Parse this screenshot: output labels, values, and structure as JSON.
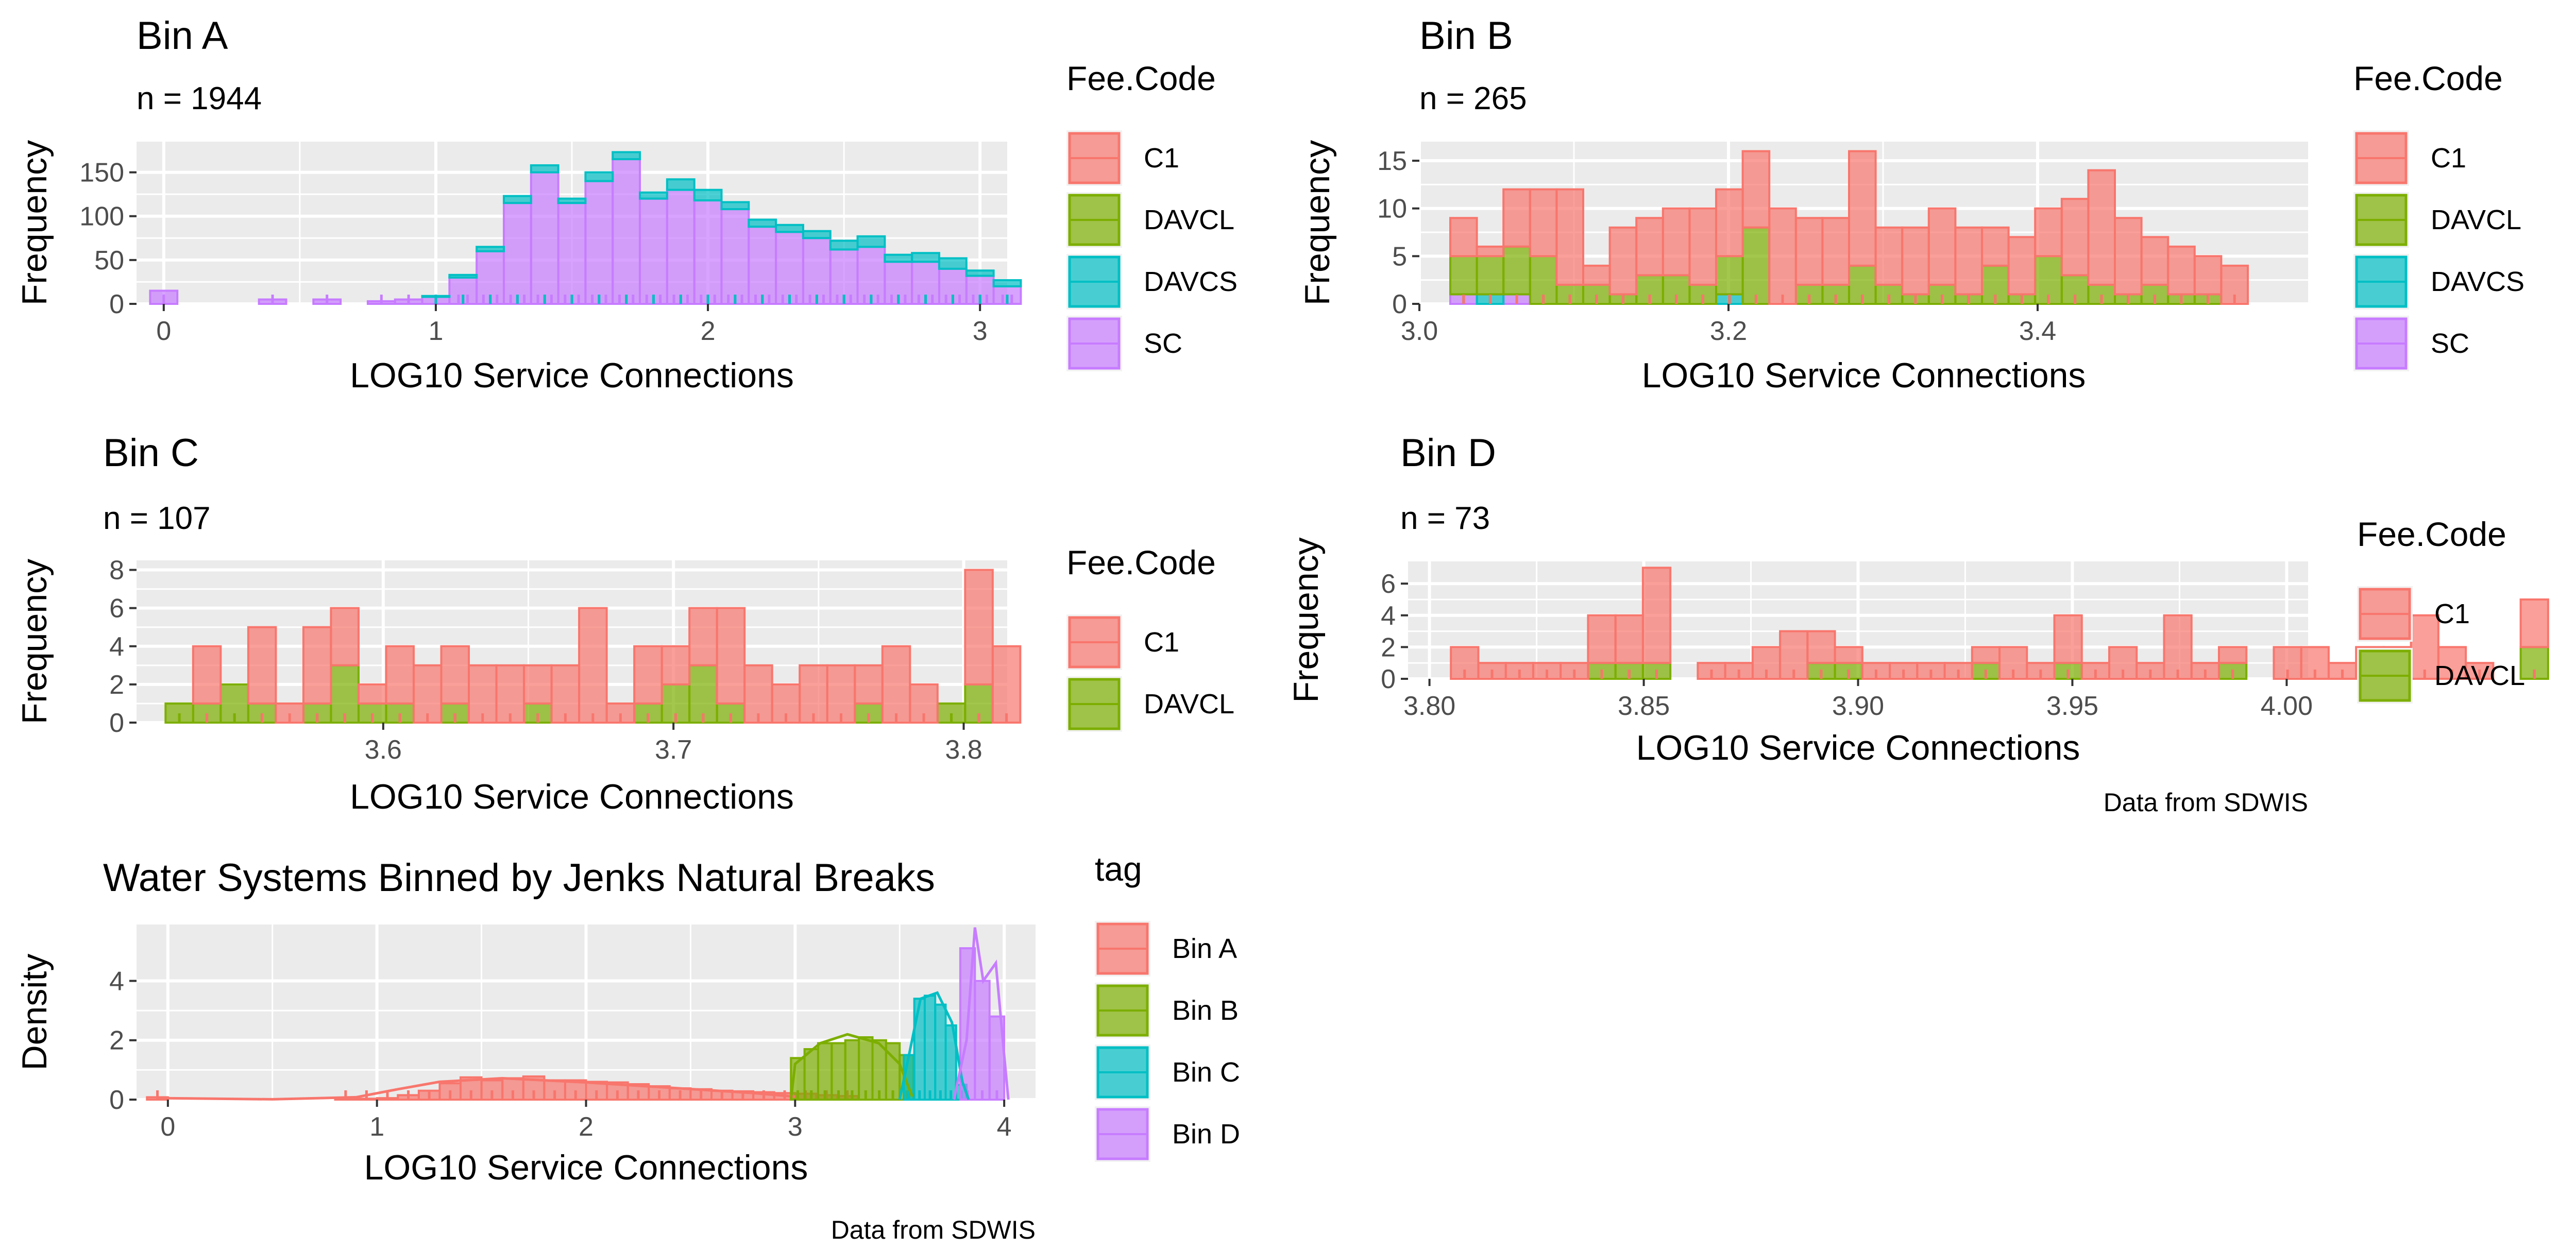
{
  "colors": {
    "C1": "#F8766D",
    "DAVCL": "#7CAE00",
    "DAVCS": "#00BFC4",
    "SC": "#C77CFF",
    "panel_bg": "#EBEBEB",
    "grid": "#ffffff"
  },
  "chart_data": [
    {
      "id": "binA",
      "type": "bar",
      "title": "Bin A",
      "subtitle": "n = 1944",
      "xlabel": "LOG10 Service Connections",
      "ylabel": "Frequency",
      "xlim": [
        -0.1,
        3.1
      ],
      "ylim": [
        0,
        185
      ],
      "xticks": [
        0,
        1,
        2,
        3
      ],
      "yticks": [
        0,
        50,
        100,
        150
      ],
      "bin_start": -0.05,
      "bin_width": 0.1,
      "series": [
        {
          "name": "SC",
          "values": [
            15,
            0,
            0,
            0,
            5,
            0,
            5,
            0,
            3,
            5,
            8,
            30,
            60,
            115,
            150,
            115,
            140,
            165,
            120,
            130,
            118,
            108,
            88,
            82,
            75,
            62,
            65,
            48,
            48,
            40,
            32,
            20
          ]
        },
        {
          "name": "DAVCS",
          "values": [
            0,
            0,
            0,
            0,
            0,
            0,
            0,
            0,
            0,
            0,
            1,
            3,
            5,
            8,
            8,
            5,
            10,
            8,
            7,
            12,
            12,
            8,
            8,
            8,
            8,
            10,
            12,
            8,
            10,
            12,
            6,
            7
          ]
        }
      ],
      "legend": {
        "title": "Fee.Code",
        "items": [
          "C1",
          "DAVCL",
          "DAVCS",
          "SC"
        ]
      }
    },
    {
      "id": "binB",
      "type": "bar",
      "title": "Bin B",
      "subtitle": "n = 265",
      "xlabel": "LOG10 Service Connections",
      "ylabel": "Frequency",
      "xlim": [
        3.0,
        3.575
      ],
      "ylim": [
        0,
        17
      ],
      "xticks": [
        3.0,
        3.2,
        3.4
      ],
      "xtick_labels": [
        "3.0",
        "3.2",
        "3.4"
      ],
      "yticks": [
        0,
        5,
        10,
        15
      ],
      "bin_start": 3.02,
      "bin_width": 0.0172,
      "series": [
        {
          "name": "SC",
          "values": [
            1,
            0,
            1,
            0,
            0,
            0,
            0,
            0,
            0,
            0,
            0,
            0,
            0,
            0,
            0,
            0,
            0,
            0,
            0,
            0,
            0,
            0,
            0,
            0,
            0,
            0,
            0,
            0,
            0,
            0
          ]
        },
        {
          "name": "DAVCS",
          "values": [
            0,
            1,
            0,
            0,
            0,
            0,
            0,
            0,
            0,
            0,
            1,
            0,
            0,
            0,
            0,
            0,
            0,
            0,
            0,
            0,
            0,
            0,
            0,
            0,
            0,
            0,
            0,
            0,
            0,
            0
          ]
        },
        {
          "name": "DAVCL",
          "values": [
            4,
            4,
            5,
            5,
            2,
            2,
            1,
            3,
            3,
            2,
            4,
            8,
            0,
            2,
            2,
            4,
            2,
            1,
            2,
            1,
            4,
            1,
            5,
            3,
            2,
            1,
            2,
            1,
            1,
            0
          ]
        },
        {
          "name": "C1",
          "values": [
            4,
            1,
            6,
            7,
            10,
            2,
            7,
            6,
            7,
            8,
            7,
            8,
            10,
            7,
            7,
            12,
            6,
            7,
            8,
            7,
            4,
            6,
            5,
            8,
            12,
            8,
            5,
            5,
            4,
            4
          ]
        }
      ],
      "legend": {
        "title": "Fee.Code",
        "items": [
          "C1",
          "DAVCL",
          "DAVCS",
          "SC"
        ]
      }
    },
    {
      "id": "binC",
      "type": "bar",
      "title": "Bin C",
      "subtitle": "n = 107",
      "xlabel": "LOG10 Service Connections",
      "ylabel": "Frequency",
      "xlim": [
        3.515,
        3.815
      ],
      "ylim": [
        0,
        8.5
      ],
      "xticks": [
        3.6,
        3.7,
        3.8
      ],
      "xtick_labels": [
        "3.6",
        "3.7",
        "3.8"
      ],
      "yticks": [
        0,
        2,
        4,
        6,
        8
      ],
      "bin_start": 3.525,
      "bin_width": 0.0095,
      "series": [
        {
          "name": "DAVCL",
          "values": [
            1,
            1,
            2,
            1,
            0,
            1,
            3,
            1,
            1,
            0,
            1,
            0,
            0,
            1,
            0,
            0,
            0,
            1,
            2,
            3,
            1,
            0,
            0,
            0,
            0,
            1,
            0,
            0,
            1,
            2,
            0
          ]
        },
        {
          "name": "C1",
          "values": [
            0,
            3,
            0,
            4,
            1,
            4,
            3,
            1,
            3,
            3,
            3,
            3,
            3,
            2,
            3,
            6,
            1,
            3,
            2,
            3,
            5,
            3,
            2,
            3,
            3,
            2,
            4,
            2,
            0,
            6,
            4
          ]
        }
      ],
      "legend": {
        "title": "Fee.Code",
        "items": [
          "C1",
          "DAVCL"
        ]
      }
    },
    {
      "id": "binD",
      "type": "bar",
      "title": "Bin D",
      "subtitle": "n = 73",
      "xlabel": "LOG10 Service Connections",
      "ylabel": "Frequency",
      "caption": "Data from SDWIS",
      "xlim": [
        3.795,
        4.005
      ],
      "ylim": [
        0,
        7.4
      ],
      "xticks": [
        3.8,
        3.85,
        3.9,
        3.95,
        4.0
      ],
      "xtick_labels": [
        "3.80",
        "3.85",
        "3.90",
        "3.95",
        "4.00"
      ],
      "yticks": [
        0,
        2,
        4,
        6
      ],
      "bin_start": 3.805,
      "bin_width": 0.0064,
      "series": [
        {
          "name": "DAVCL",
          "values": [
            0,
            0,
            0,
            0,
            0,
            1,
            1,
            1,
            0,
            0,
            0,
            0,
            0,
            1,
            1,
            0,
            0,
            0,
            0,
            1,
            0,
            0,
            1,
            0,
            0,
            0,
            0,
            0,
            1,
            0,
            0,
            0,
            0,
            0,
            0,
            0,
            0,
            0,
            0,
            2
          ]
        },
        {
          "name": "C1",
          "values": [
            2,
            1,
            1,
            1,
            1,
            3,
            3,
            6,
            0,
            1,
            1,
            2,
            3,
            2,
            1,
            1,
            1,
            1,
            1,
            1,
            2,
            1,
            3,
            1,
            2,
            1,
            4,
            1,
            1,
            0,
            2,
            2,
            1,
            2,
            2,
            4,
            2,
            1,
            0,
            3
          ]
        }
      ],
      "legend": {
        "title": "Fee.Code",
        "items": [
          "C1",
          "DAVCL"
        ]
      }
    },
    {
      "id": "jenks",
      "type": "bar",
      "title": "Water Systems Binned by Jenks Natural Breaks",
      "xlabel": "LOG10 Service Connections",
      "ylabel": "Density",
      "caption": "Data from SDWIS",
      "xlim": [
        -0.15,
        4.15
      ],
      "ylim": [
        0,
        5.9
      ],
      "xticks": [
        0,
        1,
        2,
        3,
        4
      ],
      "yticks": [
        0,
        2,
        4
      ],
      "series": [
        {
          "name": "Bin A",
          "bin_start": -0.1,
          "bin_width": 0.1,
          "values": [
            0.08,
            0.0,
            0.0,
            0.0,
            0.0,
            0.0,
            0.0,
            0.0,
            0.0,
            0.02,
            0.03,
            0.05,
            0.15,
            0.3,
            0.55,
            0.75,
            0.65,
            0.72,
            0.78,
            0.65,
            0.65,
            0.6,
            0.58,
            0.52,
            0.45,
            0.38,
            0.35,
            0.3,
            0.28,
            0.25,
            0.22,
            0.2,
            0.15,
            0.12
          ]
        },
        {
          "name": "Bin B",
          "bin_start": 2.98,
          "bin_width": 0.065,
          "values": [
            1.4,
            1.7,
            1.9,
            1.9,
            2.0,
            2.1,
            2.0,
            1.9,
            1.5
          ]
        },
        {
          "name": "Bin C",
          "bin_start": 3.52,
          "bin_width": 0.05,
          "values": [
            1.5,
            3.4,
            3.5,
            3.2,
            2.5,
            0.5
          ]
        },
        {
          "name": "Bin D",
          "bin_start": 3.79,
          "bin_width": 0.07,
          "values": [
            5.1,
            4.0,
            2.8
          ]
        }
      ],
      "density_lines": [
        {
          "name": "Bin A",
          "points": [
            [
              -0.05,
              0.05
            ],
            [
              0.5,
              0.01
            ],
            [
              0.9,
              0.08
            ],
            [
              1.1,
              0.35
            ],
            [
              1.3,
              0.6
            ],
            [
              1.6,
              0.72
            ],
            [
              2.0,
              0.58
            ],
            [
              2.4,
              0.4
            ],
            [
              2.8,
              0.22
            ],
            [
              3.0,
              0.1
            ]
          ]
        },
        {
          "name": "Bin B",
          "points": [
            [
              2.98,
              0.0
            ],
            [
              3.0,
              1.2
            ],
            [
              3.12,
              1.9
            ],
            [
              3.25,
              2.2
            ],
            [
              3.4,
              1.9
            ],
            [
              3.5,
              1.2
            ],
            [
              3.56,
              0.1
            ]
          ]
        },
        {
          "name": "Bin C",
          "points": [
            [
              3.5,
              0.0
            ],
            [
              3.53,
              1.0
            ],
            [
              3.6,
              3.4
            ],
            [
              3.68,
              3.6
            ],
            [
              3.75,
              2.6
            ],
            [
              3.8,
              0.6
            ],
            [
              3.83,
              0.0
            ]
          ]
        },
        {
          "name": "Bin D",
          "points": [
            [
              3.76,
              0.0
            ],
            [
              3.82,
              2.0
            ],
            [
              3.86,
              5.8
            ],
            [
              3.9,
              4.0
            ],
            [
              3.96,
              4.6
            ],
            [
              4.0,
              1.5
            ],
            [
              4.02,
              0.0
            ]
          ]
        }
      ],
      "legend": {
        "title": "tag",
        "items": [
          "Bin A",
          "Bin B",
          "Bin C",
          "Bin D"
        ]
      }
    }
  ]
}
